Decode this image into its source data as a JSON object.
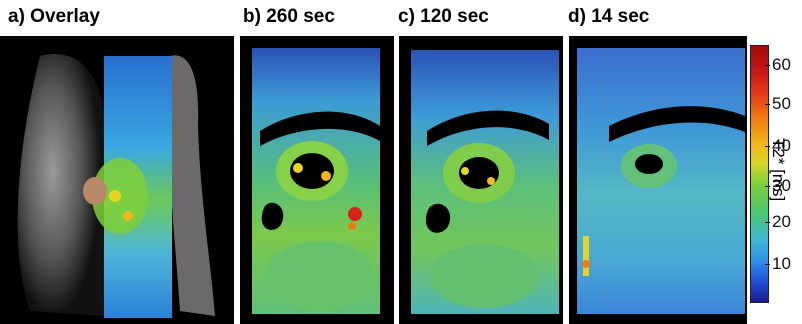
{
  "panels": [
    {
      "label": "a) Overlay"
    },
    {
      "label": "b) 260 sec"
    },
    {
      "label": "c) 120 sec"
    },
    {
      "label": "d) 14 sec"
    }
  ],
  "colorbar": {
    "ticks": [
      "10",
      "20",
      "30",
      "40",
      "50",
      "60"
    ],
    "unit_label": "T2* [ms]"
  }
}
